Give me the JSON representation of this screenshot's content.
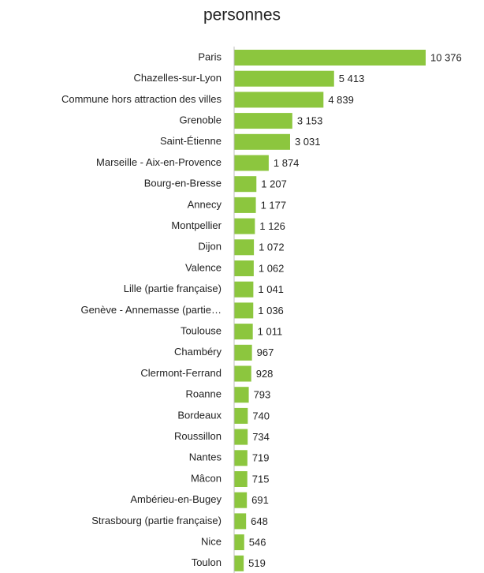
{
  "chart_data": {
    "type": "bar",
    "orientation": "horizontal",
    "title": "personnes",
    "categories": [
      "Paris",
      "Chazelles-sur-Lyon",
      "Commune hors attraction des villes",
      "Grenoble",
      "Saint-Étienne",
      "Marseille - Aix-en-Provence",
      "Bourg-en-Bresse",
      "Annecy",
      "Montpellier",
      "Dijon",
      "Valence",
      "Lille (partie française)",
      "Genève - Annemasse (partie…",
      "Toulouse",
      "Chambéry",
      "Clermont-Ferrand",
      "Roanne",
      "Bordeaux",
      "Roussillon",
      "Nantes",
      "Mâcon",
      "Ambérieu-en-Bugey",
      "Strasbourg (partie française)",
      "Nice",
      "Toulon"
    ],
    "values": [
      10376,
      5413,
      4839,
      3153,
      3031,
      1874,
      1207,
      1177,
      1126,
      1072,
      1062,
      1041,
      1036,
      1011,
      967,
      928,
      793,
      740,
      734,
      719,
      715,
      691,
      648,
      546,
      519
    ],
    "value_labels": [
      "10 376",
      "5 413",
      "4 839",
      "3 153",
      "3 031",
      "1 874",
      "1 207",
      "1 177",
      "1 126",
      "1 072",
      "1 062",
      "1 041",
      "1 036",
      "1 011",
      "967",
      "928",
      "793",
      "740",
      "734",
      "719",
      "715",
      "691",
      "648",
      "546",
      "519"
    ],
    "color": "#8cc63e"
  }
}
